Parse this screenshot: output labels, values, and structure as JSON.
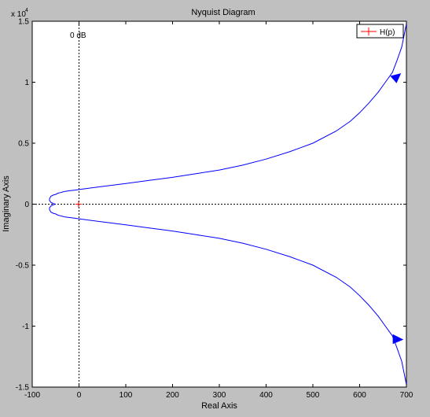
{
  "window": {
    "background": "#c0c0c0"
  },
  "chart_data": {
    "type": "line",
    "title": "Nyquist Diagram",
    "xlabel": "Real Axis",
    "ylabel": "Imaginary Axis",
    "xlim": [
      -100,
      700
    ],
    "ylim": [
      -15000,
      15000
    ],
    "y_exponent_label": "x 10",
    "y_exponent_power": "4",
    "xticks": [
      -100,
      0,
      100,
      200,
      300,
      400,
      500,
      600,
      700
    ],
    "xtick_labels": [
      "-100",
      "0",
      "100",
      "200",
      "300",
      "400",
      "500",
      "600",
      "700"
    ],
    "yticks": [
      -15000,
      -10000,
      -5000,
      0,
      5000,
      10000,
      15000
    ],
    "ytick_labels": [
      "-1.5",
      "-1",
      "-0.5",
      "0",
      "0.5",
      "1",
      "1.5"
    ],
    "grid": false,
    "legend": {
      "position": "top-right",
      "entries": [
        {
          "label": "H(p)",
          "color": "#ff0000",
          "marker": "+"
        }
      ]
    },
    "reference_lines": [
      {
        "orientation": "vertical",
        "x": 0,
        "style": "dotted",
        "label": "0 dB"
      },
      {
        "orientation": "horizontal",
        "y": 0,
        "style": "dotted"
      }
    ],
    "critical_point": {
      "x": -1,
      "y": 0,
      "marker": "+",
      "color": "#ff0000"
    },
    "series": [
      {
        "color": "#0000ff",
        "x": [
          -50,
          -55,
          -60,
          -63,
          -63,
          -60,
          -55,
          -50,
          -45,
          -40,
          -35,
          -30,
          -20,
          -10,
          0,
          50,
          100,
          150,
          200,
          250,
          300,
          350,
          400,
          450,
          500,
          550,
          580,
          600,
          620,
          640,
          655,
          670,
          680,
          690,
          700
        ],
        "y": [
          0,
          50,
          150,
          300,
          450,
          650,
          750,
          800,
          900,
          950,
          1000,
          1050,
          1100,
          1150,
          1200,
          1450,
          1700,
          1950,
          2200,
          2500,
          2800,
          3200,
          3700,
          4300,
          5000,
          6000,
          6800,
          7500,
          8300,
          9200,
          10000,
          10800,
          11800,
          12900,
          14800
        ]
      },
      {
        "color": "#0000ff",
        "x": [
          -50,
          -55,
          -60,
          -63,
          -63,
          -60,
          -55,
          -50,
          -45,
          -40,
          -35,
          -30,
          -20,
          -10,
          0,
          50,
          100,
          150,
          200,
          250,
          300,
          350,
          400,
          450,
          500,
          550,
          580,
          600,
          620,
          640,
          655,
          670,
          680,
          690,
          700
        ],
        "y": [
          0,
          -50,
          -150,
          -300,
          -450,
          -650,
          -750,
          -800,
          -900,
          -950,
          -1000,
          -1050,
          -1100,
          -1150,
          -1200,
          -1450,
          -1700,
          -1950,
          -2200,
          -2500,
          -2800,
          -3200,
          -3700,
          -4300,
          -5000,
          -6000,
          -6800,
          -7500,
          -8300,
          -9200,
          -10000,
          -10800,
          -11800,
          -12900,
          -14800
        ]
      }
    ],
    "direction_arrows": [
      {
        "x": 677,
        "y": 10300,
        "direction": "down",
        "color": "#0000ff"
      },
      {
        "x": 680,
        "y": -11100,
        "direction": "right",
        "color": "#0000ff"
      }
    ]
  }
}
